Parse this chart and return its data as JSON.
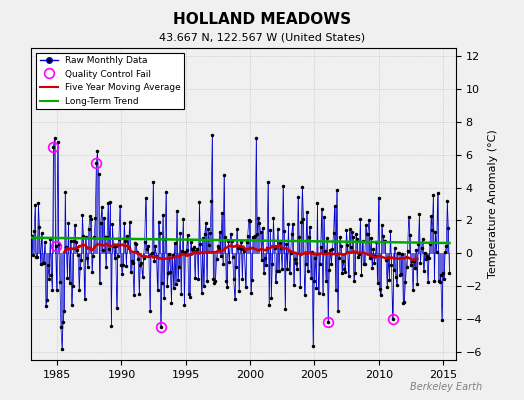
{
  "title": "HOLLAND MEADOWS",
  "subtitle": "43.667 N, 122.567 W (United States)",
  "ylabel": "Temperature Anomaly (°C)",
  "watermark": "Berkeley Earth",
  "xlim": [
    1983,
    2016
  ],
  "ylim": [
    -6.5,
    12.5
  ],
  "yticks": [
    -6,
    -4,
    -2,
    0,
    2,
    4,
    6,
    8,
    10,
    12
  ],
  "xticks": [
    1985,
    1990,
    1995,
    2000,
    2005,
    2010,
    2015
  ],
  "raw_color": "#0000cc",
  "ma_color": "#cc0000",
  "trend_color": "#00aa00",
  "qc_color": "#ff00ff",
  "background_color": "#f0f0f0",
  "seed": 42
}
